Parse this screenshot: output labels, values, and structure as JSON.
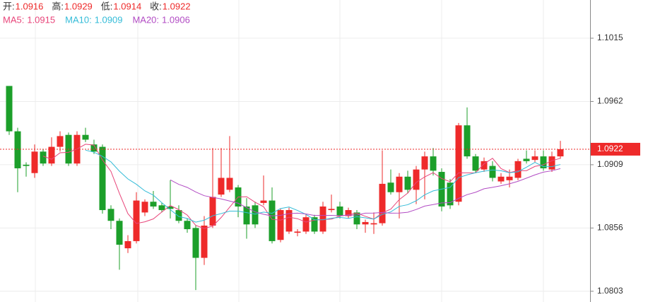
{
  "chart_data": {
    "type": "candlestick",
    "header": {
      "labels": [
        "开:",
        "高:",
        "低:",
        "收:"
      ]
    },
    "ma": [
      {
        "name": "MA5:",
        "period": 5,
        "value": 1.0915,
        "color": "#e8457a"
      },
      {
        "name": "MA10:",
        "period": 10,
        "value": 1.0909,
        "color": "#34bcd8"
      },
      {
        "name": "MA20:",
        "period": 20,
        "value": 1.0906,
        "color": "#b24cc4"
      }
    ],
    "up_color": "#ee2a2a",
    "down_color": "#1c9f2a",
    "last_price": 1.0922,
    "ylim": [
      1.0794,
      1.1047
    ],
    "yticks": [
      1.1015,
      1.0962,
      1.0909,
      1.0856,
      1.0803
    ],
    "grid": true,
    "open": [
      1.0975,
      1.0937,
      1.0909,
      1.0902,
      1.092,
      1.091,
      1.0924,
      1.0934,
      1.091,
      1.0934,
      1.0926,
      1.0924,
      1.0872,
      1.0862,
      1.0839,
      1.0845,
      1.0869,
      1.0878,
      1.0875,
      1.0874,
      1.0871,
      1.0862,
      1.0856,
      1.0831,
      1.0858,
      1.0884,
      1.0888,
      1.089,
      1.0874,
      1.0875,
      1.0877,
      1.0879,
      1.0846,
      1.0853,
      1.0852,
      1.0853,
      1.0865,
      1.0853,
      1.0871,
      1.0874,
      1.0866,
      1.0869,
      1.0859,
      1.0859,
      1.086,
      1.0894,
      1.0886,
      1.0899,
      1.0888,
      1.0905,
      1.0916,
      1.0903,
      1.0894,
      1.0878,
      1.0942,
      1.0916,
      1.0905,
      1.0908,
      1.0895,
      1.0896,
      1.0898,
      1.0914,
      1.0913,
      1.0916,
      1.0905,
      1.0916
    ],
    "high": [
      1.0975,
      1.094,
      1.0911,
      1.0926,
      1.0922,
      1.0932,
      1.0937,
      1.0936,
      1.0937,
      1.094,
      1.093,
      1.0926,
      1.0875,
      1.0864,
      1.085,
      1.0886,
      1.088,
      1.0887,
      1.0877,
      1.0896,
      1.0875,
      1.0864,
      1.0858,
      1.0866,
      1.0923,
      1.0923,
      1.0933,
      1.0892,
      1.0881,
      1.0878,
      1.09,
      1.089,
      1.0872,
      1.0873,
      1.0855,
      1.0867,
      1.0867,
      1.0878,
      1.0884,
      1.0878,
      1.0873,
      1.0871,
      1.0863,
      1.0869,
      1.0921,
      1.0905,
      1.0902,
      1.0904,
      1.0908,
      1.092,
      1.0923,
      1.0906,
      1.0897,
      1.0944,
      1.0957,
      1.0918,
      1.0915,
      1.0912,
      1.0902,
      1.0905,
      1.0914,
      1.0921,
      1.0921,
      1.0921,
      1.092,
      1.0929
    ],
    "low": [
      1.0934,
      1.0886,
      1.0899,
      1.0898,
      1.0908,
      1.0908,
      1.092,
      1.0908,
      1.0908,
      1.0928,
      1.0918,
      1.0868,
      1.0855,
      1.0821,
      1.0835,
      1.0843,
      1.0866,
      1.0872,
      1.0869,
      1.0864,
      1.086,
      1.0852,
      1.0804,
      1.0825,
      1.0856,
      1.0882,
      1.0886,
      1.0865,
      1.0847,
      1.0856,
      1.0875,
      1.0843,
      1.0844,
      1.0851,
      1.0849,
      1.0851,
      1.0851,
      1.0851,
      1.0869,
      1.0864,
      1.0864,
      1.0855,
      1.0852,
      1.0851,
      1.0858,
      1.0884,
      1.0864,
      1.0885,
      1.0876,
      1.088,
      1.09,
      1.087,
      1.0872,
      1.0875,
      1.0914,
      1.0902,
      1.0903,
      1.0895,
      1.0893,
      1.089,
      1.0896,
      1.091,
      1.0911,
      1.0904,
      1.0903,
      1.0914
    ],
    "close": [
      1.0937,
      1.0906,
      1.0908,
      1.092,
      1.091,
      1.0924,
      1.0933,
      1.091,
      1.0934,
      1.093,
      1.092,
      1.0871,
      1.0862,
      1.0842,
      1.0845,
      1.0879,
      1.0878,
      1.0874,
      1.0871,
      1.0872,
      1.0862,
      1.0855,
      1.0831,
      1.0858,
      1.0882,
      1.0898,
      1.0898,
      1.0874,
      1.0859,
      1.0859,
      1.0879,
      1.0845,
      1.0871,
      1.0871,
      1.0853,
      1.0865,
      1.0853,
      1.0874,
      1.0872,
      1.0866,
      1.0871,
      1.0859,
      1.0861,
      1.086,
      1.0893,
      1.0886,
      1.0899,
      1.0888,
      1.0905,
      1.0916,
      1.0904,
      1.0874,
      1.0875,
      1.0942,
      1.0916,
      1.0904,
      1.0912,
      1.0898,
      1.0899,
      1.0899,
      1.0912,
      1.0912,
      1.0916,
      1.0906,
      1.0916,
      1.0922
    ]
  }
}
